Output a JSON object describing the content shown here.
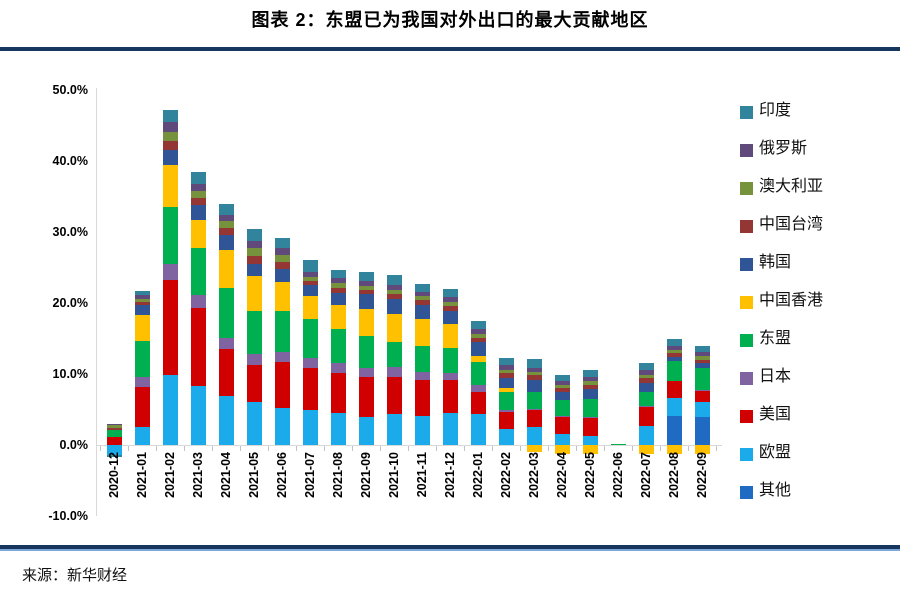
{
  "page": {
    "title": "图表 2：东盟已为我国对外出口的最大贡献地区",
    "source": "来源：新华财经"
  },
  "chart_data": {
    "type": "bar",
    "subtype": "stacked-column",
    "title": "图表 2：东盟已为我国对外出口的最大贡献地区",
    "xlabel": "",
    "ylabel": "",
    "value_format": "percent",
    "grid": false,
    "legend_position": "right",
    "y_axis": {
      "min": -10,
      "max": 50,
      "tick_step": 10,
      "ticks": [
        50,
        40,
        30,
        20,
        10,
        0,
        -10
      ],
      "tick_labels": [
        "50.0%",
        "40.0%",
        "30.0%",
        "20.0%",
        "10.0%",
        "0.0%",
        "-10.0%"
      ]
    },
    "categories": [
      "2020-12",
      "2021-01",
      "2021-02",
      "2021-03",
      "2021-04",
      "2021-05",
      "2021-06",
      "2021-07",
      "2021-08",
      "2021-09",
      "2021-10",
      "2021-11",
      "2021-12",
      "2022-01",
      "2022-02",
      "2022-03",
      "2022-04",
      "2022-05",
      "2022-06",
      "2022-07",
      "2022-08",
      "2022-09"
    ],
    "stack_order_note": "series listed bottom-to-top of stack; legend shows reverse order top-to-bottom",
    "series": [
      {
        "name": "其他",
        "color": "#1f6bc4",
        "values": [
          0,
          0,
          0,
          0,
          0,
          0,
          0,
          0,
          0,
          0,
          0,
          0,
          0,
          0,
          0,
          0,
          0,
          0,
          0,
          0,
          4.1,
          4.0
        ]
      },
      {
        "name": "欧盟",
        "color": "#1cabea",
        "values": [
          -1.4,
          2.6,
          9.9,
          8.3,
          6.9,
          6.0,
          5.2,
          4.9,
          4.5,
          4.0,
          4.3,
          4.1,
          4.5,
          4.4,
          2.2,
          2.5,
          1.5,
          1.3,
          0,
          2.7,
          2.5,
          2.0
        ]
      },
      {
        "name": "美国",
        "color": "#d00000",
        "values": [
          1.1,
          5.6,
          13.4,
          11.0,
          6.6,
          5.2,
          6.5,
          6.0,
          5.6,
          5.6,
          5.3,
          5.0,
          4.7,
          3.0,
          2.5,
          2.5,
          2.4,
          2.6,
          0,
          2.7,
          2.4,
          1.6
        ]
      },
      {
        "name": "日本",
        "color": "#8064a2",
        "values": [
          0,
          1.4,
          2.2,
          1.8,
          1.6,
          1.6,
          1.4,
          1.4,
          1.4,
          1.2,
          1.4,
          1.2,
          0.9,
          1.0,
          0.2,
          0.1,
          0.2,
          0.1,
          0,
          0.1,
          0,
          0.2
        ]
      },
      {
        "name": "东盟",
        "color": "#00b050",
        "values": [
          1.0,
          5.0,
          8.0,
          6.6,
          7.0,
          6.1,
          5.8,
          5.5,
          4.8,
          4.5,
          3.5,
          3.6,
          3.6,
          3.3,
          2.5,
          2.4,
          2.2,
          2.5,
          0.1,
          2.0,
          2.8,
          3.0
        ]
      },
      {
        "name": "中国香港",
        "color": "#ffc000",
        "values": [
          0,
          3.7,
          5.9,
          4.0,
          5.4,
          4.9,
          4.0,
          3.2,
          3.4,
          3.8,
          4.0,
          3.9,
          3.3,
          0.9,
          0.6,
          -1.0,
          -1.2,
          -1.3,
          0,
          -1.2,
          -1.2,
          -1.2
        ]
      },
      {
        "name": "韩国",
        "color": "#2f5597",
        "values": [
          0,
          1.4,
          2.2,
          2.1,
          2.1,
          1.7,
          1.9,
          1.5,
          1.7,
          2.1,
          2.0,
          1.9,
          1.9,
          1.9,
          1.5,
          1.7,
          1.2,
          1.4,
          0,
          1.3,
          0.6,
          0.7
        ]
      },
      {
        "name": "中国台湾",
        "color": "#943634",
        "values": [
          0.3,
          0.5,
          1.2,
          1.0,
          1.0,
          1.1,
          1.0,
          0.6,
          0.7,
          0.6,
          0.8,
          0.7,
          0.7,
          0.6,
          0.6,
          0.6,
          0.5,
          0.6,
          0,
          0.6,
          0.5,
          0.5
        ]
      },
      {
        "name": "澳大利亚",
        "color": "#76923c",
        "values": [
          0.4,
          0.4,
          1.3,
          1.0,
          0.9,
          1.1,
          1.0,
          0.6,
          0.7,
          0.6,
          0.6,
          0.6,
          0.6,
          0.6,
          0.5,
          0.5,
          0.5,
          0.5,
          0,
          0.5,
          0.5,
          0.5
        ]
      },
      {
        "name": "俄罗斯",
        "color": "#604a7b",
        "values": [
          0.2,
          0.5,
          1.4,
          1.0,
          0.9,
          1.1,
          1.0,
          0.7,
          0.7,
          0.7,
          0.7,
          0.6,
          0.7,
          0.6,
          0.6,
          0.6,
          0.5,
          0.6,
          0,
          0.6,
          0.6,
          0.6
        ]
      },
      {
        "name": "印度",
        "color": "#31849b",
        "values": [
          -0.3,
          0.6,
          1.65,
          1.6,
          1.5,
          1.65,
          1.4,
          1.7,
          1.2,
          1.3,
          1.3,
          1.1,
          1.1,
          1.2,
          1.0,
          1.2,
          0.9,
          0.9,
          0,
          1.1,
          1.0,
          0.9
        ]
      }
    ],
    "legend_labels": [
      "印度",
      "俄罗斯",
      "澳大利亚",
      "中国台湾",
      "韩国",
      "中国香港",
      "东盟",
      "日本",
      "美国",
      "欧盟",
      "其他"
    ]
  },
  "style_colors": {
    "divider_navy": "#17365d",
    "divider_light_edge": "#7da7d9",
    "axis_line": "#d9d9d9"
  }
}
